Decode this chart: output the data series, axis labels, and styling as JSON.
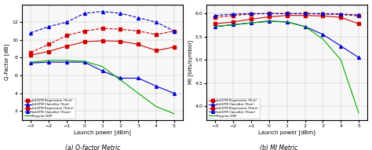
{
  "x": [
    -3,
    -2,
    -1,
    0,
    1,
    2,
    3,
    4,
    5
  ],
  "qf_regression_test": [
    8.3,
    8.7,
    9.3,
    9.8,
    9.9,
    9.85,
    9.5,
    8.8,
    9.2
  ],
  "qf_classifier_test": [
    7.4,
    7.5,
    7.5,
    7.5,
    6.5,
    5.7,
    5.7,
    4.8,
    4.0
  ],
  "qf_regression_train": [
    8.6,
    9.5,
    10.5,
    11.0,
    11.3,
    11.2,
    11.0,
    10.6,
    11.0
  ],
  "qf_classifier_train": [
    10.8,
    11.5,
    12.0,
    13.0,
    13.2,
    13.0,
    12.5,
    12.0,
    11.0
  ],
  "qf_dsp": [
    7.5,
    7.7,
    7.7,
    7.6,
    7.0,
    5.5,
    4.0,
    2.5,
    1.7
  ],
  "mi_regression_test": [
    5.78,
    5.82,
    5.88,
    5.93,
    5.96,
    5.96,
    5.95,
    5.92,
    5.78
  ],
  "mi_classifier_test": [
    5.72,
    5.76,
    5.8,
    5.84,
    5.82,
    5.72,
    5.55,
    5.3,
    5.05
  ],
  "mi_regression_train": [
    5.92,
    5.96,
    5.99,
    6.0,
    6.0,
    6.0,
    5.99,
    5.98,
    5.95
  ],
  "mi_classifier_train": [
    5.96,
    5.99,
    6.0,
    6.0,
    6.0,
    6.0,
    6.0,
    5.99,
    5.97
  ],
  "mi_dsp": [
    5.72,
    5.76,
    5.8,
    5.83,
    5.82,
    5.72,
    5.45,
    5.0,
    3.85
  ],
  "color_red": "#cc0000",
  "color_blue": "#0000cc",
  "color_green": "#00aa00",
  "qf_ylabel": "Q-Factor [dB]",
  "mi_ylabel": "MI [bits/symbol]",
  "xlabel": "Launch power [dBm]",
  "caption_a": "(a) Q-factor Metric",
  "caption_b": "(b) MI Metric",
  "legend_labels": [
    "biLSTM Regression (Test)",
    "biLSTM Classifier (Test)",
    "biLSTM Regression (Train)",
    "biLSTM Classifier (Train)",
    "Regular DSP"
  ],
  "qf_ylim": [
    1,
    14
  ],
  "mi_ylim": [
    3.7,
    6.2
  ],
  "qf_yticks": [
    2,
    4,
    6,
    8,
    10,
    12
  ],
  "mi_yticks": [
    4.0,
    4.5,
    5.0,
    5.5,
    6.0
  ],
  "xlim": [
    -3.5,
    5.5
  ],
  "xticks": [
    -3,
    -2,
    -1,
    0,
    1,
    2,
    3,
    4,
    5
  ]
}
